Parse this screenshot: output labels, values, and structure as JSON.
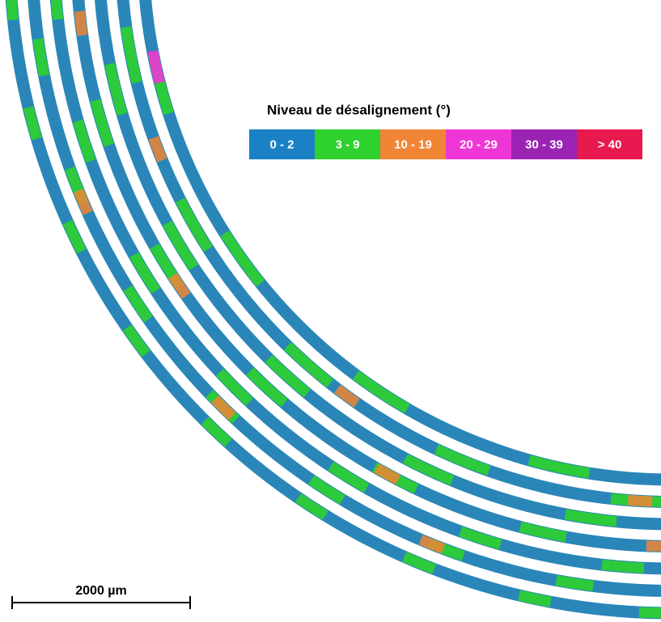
{
  "legend": {
    "title": "Niveau de désalignement (°)",
    "items": [
      {
        "label": "0 - 2",
        "color": "#1a82c4"
      },
      {
        "label": "3 - 9",
        "color": "#2ed12e"
      },
      {
        "label": "10 - 19",
        "color": "#f08535"
      },
      {
        "label": "20 - 29",
        "color": "#ee36d6"
      },
      {
        "label": "30 - 39",
        "color": "#9b23b4"
      },
      {
        "label": "> 40",
        "color": "#e8194e"
      }
    ]
  },
  "scale_bar": {
    "label": "2000 µm"
  }
}
